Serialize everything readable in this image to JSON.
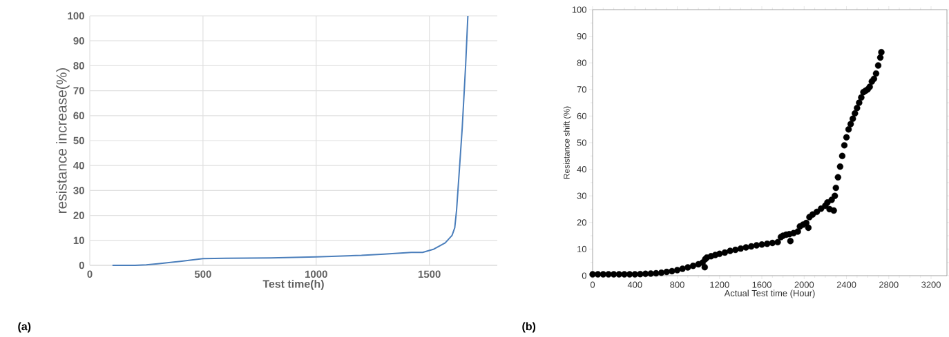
{
  "chart_data": [
    {
      "type": "line",
      "xlabel": "Test time(h)",
      "ylabel": "resistance increase(%)",
      "color": "#4a7ebb",
      "grid": true,
      "xlim": [
        0,
        1800
      ],
      "ylim": [
        0,
        100
      ],
      "xticks": [
        0,
        500,
        1000,
        1500
      ],
      "yticks": [
        0,
        10,
        20,
        30,
        40,
        50,
        60,
        70,
        80,
        90,
        100
      ],
      "annotations": [
        "(a)"
      ],
      "x": [
        100,
        200,
        250,
        300,
        400,
        500,
        600,
        800,
        1000,
        1200,
        1300,
        1420,
        1470,
        1520,
        1570,
        1600,
        1612,
        1620,
        1630,
        1645,
        1660,
        1670
      ],
      "values": [
        0,
        0,
        0.2,
        0.6,
        1.6,
        2.7,
        2.8,
        3,
        3.4,
        4,
        4.5,
        5.2,
        5.2,
        6.5,
        9,
        12,
        15,
        22,
        35,
        55,
        80,
        100
      ]
    },
    {
      "type": "scatter",
      "xlabel": "Actual Test time (Hour)",
      "ylabel": "Resistance shift (%)",
      "color": "#000000",
      "marker": "circle",
      "xlim": [
        0,
        3350
      ],
      "ylim": [
        0,
        100
      ],
      "xticks": [
        0,
        400,
        800,
        1200,
        1600,
        2000,
        2400,
        2800,
        3200
      ],
      "yticks": [
        0,
        10,
        20,
        30,
        40,
        50,
        60,
        70,
        80,
        90,
        100
      ],
      "annotations": [
        "(b)"
      ],
      "x": [
        0,
        50,
        100,
        150,
        200,
        250,
        300,
        350,
        400,
        450,
        500,
        550,
        600,
        650,
        700,
        750,
        800,
        850,
        900,
        950,
        1000,
        1040,
        1060,
        1065,
        1080,
        1120,
        1160,
        1200,
        1250,
        1300,
        1350,
        1400,
        1450,
        1500,
        1550,
        1600,
        1650,
        1700,
        1750,
        1780,
        1800,
        1830,
        1860,
        1870,
        1900,
        1940,
        1960,
        1990,
        2020,
        2040,
        2050,
        2080,
        2120,
        2160,
        2200,
        2220,
        2240,
        2260,
        2280,
        2290,
        2300,
        2320,
        2340,
        2360,
        2380,
        2400,
        2420,
        2440,
        2460,
        2480,
        2500,
        2520,
        2540,
        2560,
        2580,
        2600,
        2620,
        2640,
        2660,
        2680,
        2700,
        2720,
        2730
      ],
      "values": [
        0.5,
        0.5,
        0.5,
        0.5,
        0.5,
        0.5,
        0.5,
        0.5,
        0.5,
        0.6,
        0.7,
        0.8,
        0.9,
        1.1,
        1.4,
        1.7,
        2.1,
        2.6,
        3.1,
        3.7,
        4.3,
        4.9,
        3.2,
        6.2,
        6.8,
        7.3,
        7.8,
        8.2,
        8.7,
        9.3,
        9.7,
        10.2,
        10.6,
        11,
        11.4,
        11.7,
        12,
        12.3,
        12.6,
        14.5,
        15,
        15.4,
        15.6,
        13,
        16,
        16.6,
        18.5,
        19.2,
        19.8,
        18,
        22,
        23,
        24,
        25.2,
        26.3,
        27.5,
        25,
        28.5,
        24.5,
        30,
        33,
        37,
        41,
        45,
        49,
        52,
        55,
        57,
        59,
        61,
        63,
        65,
        67,
        69,
        69.5,
        70,
        71,
        73,
        74,
        76,
        79,
        82,
        84
      ]
    }
  ]
}
